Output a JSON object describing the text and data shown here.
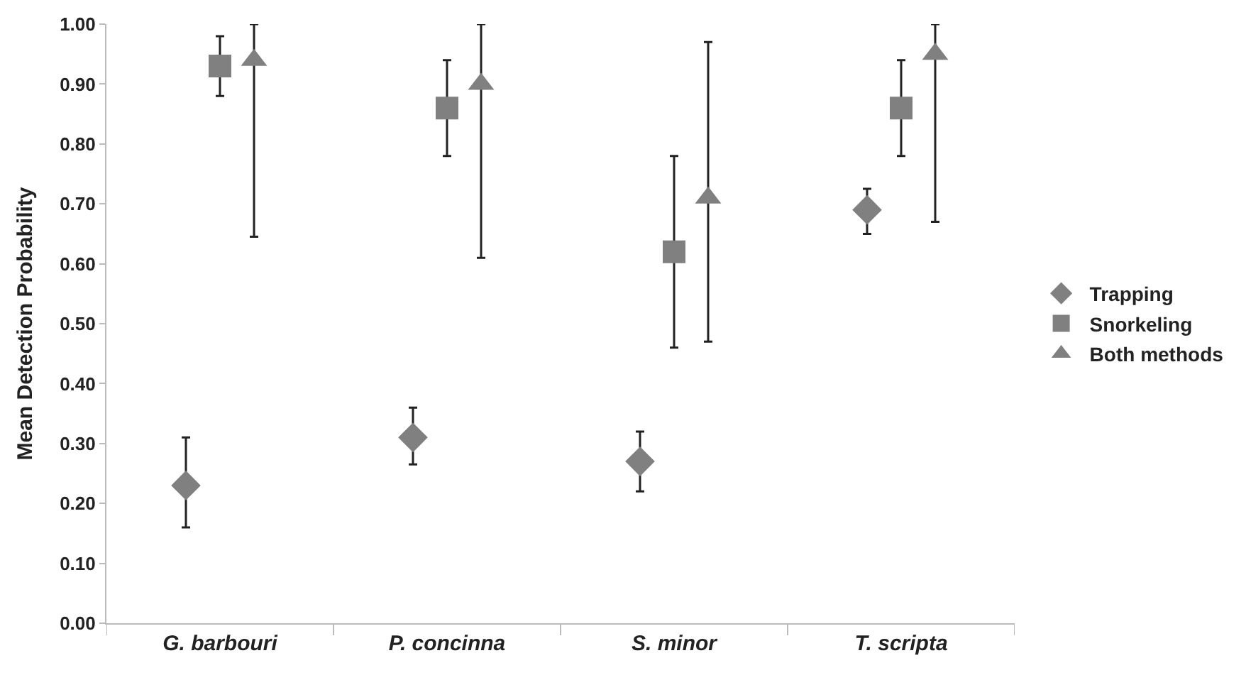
{
  "chart_data": {
    "type": "scatter",
    "ylabel": "Mean Detection Probability",
    "categories": [
      "G. barbouri",
      "P. concinna",
      "S. minor",
      "T. scripta"
    ],
    "series": [
      {
        "name": "Trapping",
        "color": "#808080",
        "marker": "diamond",
        "values": [
          0.23,
          0.31,
          0.27,
          0.69
        ],
        "errors": [
          [
            0.16,
            0.31
          ],
          [
            0.265,
            0.36
          ],
          [
            0.22,
            0.32
          ],
          [
            0.65,
            0.725
          ]
        ]
      },
      {
        "name": "Snorkeling",
        "color": "#808080",
        "marker": "square",
        "values": [
          0.93,
          0.86,
          0.62,
          0.86
        ],
        "errors": [
          [
            0.88,
            0.98
          ],
          [
            0.78,
            0.94
          ],
          [
            0.46,
            0.78
          ],
          [
            0.78,
            0.94
          ]
        ]
      },
      {
        "name": "Both methods",
        "color": "#808080",
        "marker": "triangle",
        "values": [
          0.94,
          0.9,
          0.71,
          0.95
        ],
        "errors": [
          [
            0.645,
            1.0
          ],
          [
            0.61,
            1.0
          ],
          [
            0.47,
            0.97
          ],
          [
            0.67,
            1.0
          ]
        ]
      }
    ],
    "ylim": [
      0,
      1
    ],
    "yticks": [
      {
        "value": 0,
        "label": "0.00"
      },
      {
        "value": 0.1,
        "label": "0.10"
      },
      {
        "value": 0.2,
        "label": "0.20"
      },
      {
        "value": 0.3,
        "label": "0.30"
      },
      {
        "value": 0.4,
        "label": "0.40"
      },
      {
        "value": 0.5,
        "label": "0.50"
      },
      {
        "value": 0.6,
        "label": "0.60"
      },
      {
        "value": 0.7,
        "label": "0.70"
      },
      {
        "value": 0.8,
        "label": "0.80"
      },
      {
        "value": 0.9,
        "label": "0.90"
      },
      {
        "value": 1.0,
        "label": "1.00"
      }
    ],
    "legend": "right"
  }
}
